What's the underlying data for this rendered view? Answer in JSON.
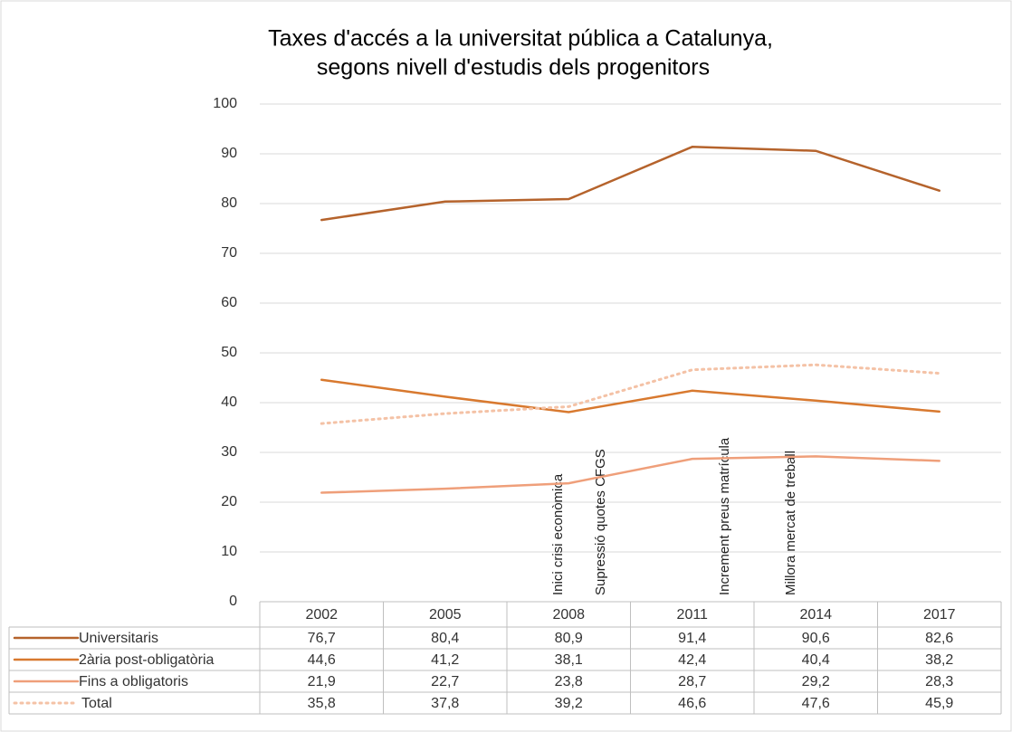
{
  "chart_data": {
    "type": "line",
    "title": [
      "Taxes d'accés a la universitat pública a Catalunya,",
      "segons nivell d'estudis dels progenitors"
    ],
    "categories": [
      "2002",
      "2005",
      "2008",
      "2011",
      "2014",
      "2017"
    ],
    "series": [
      {
        "name": "Universitaris",
        "color": "#b5632c",
        "style": "solid",
        "values": [
          76.7,
          80.4,
          80.9,
          91.4,
          90.6,
          82.6
        ],
        "value_labels": [
          "76,7",
          "80,4",
          "80,9",
          "91,4",
          "90,6",
          "82,6"
        ]
      },
      {
        "name": "2ària post-obligatòria",
        "color": "#d8792f",
        "style": "solid",
        "values": [
          44.6,
          41.2,
          38.1,
          42.4,
          40.4,
          38.2
        ],
        "value_labels": [
          "44,6",
          "41,2",
          "38,1",
          "42,4",
          "40,4",
          "38,2"
        ]
      },
      {
        "name": "Fins a obligatoris",
        "color": "#ef9f7a",
        "style": "solid",
        "values": [
          21.9,
          22.7,
          23.8,
          28.7,
          29.2,
          28.3
        ],
        "value_labels": [
          "21,9",
          "22,7",
          "23,8",
          "28,7",
          "29,2",
          "28,3"
        ]
      },
      {
        "name": "Total",
        "color": "#f4c2a6",
        "style": "dotted",
        "values": [
          35.8,
          37.8,
          39.2,
          46.6,
          47.6,
          45.9
        ],
        "value_labels": [
          "35,8",
          "37,8",
          "39,2",
          "46,6",
          "47,6",
          "45,9"
        ]
      }
    ],
    "annotations": [
      "Inici crisi econòmica",
      "Supressió quotes CFGS",
      "Increment preus matrícula",
      "Millora mercat de treball"
    ],
    "ylim": [
      0,
      100
    ],
    "yticks": [
      0,
      10,
      20,
      30,
      40,
      50,
      60,
      70,
      80,
      90,
      100
    ],
    "grid": true
  }
}
